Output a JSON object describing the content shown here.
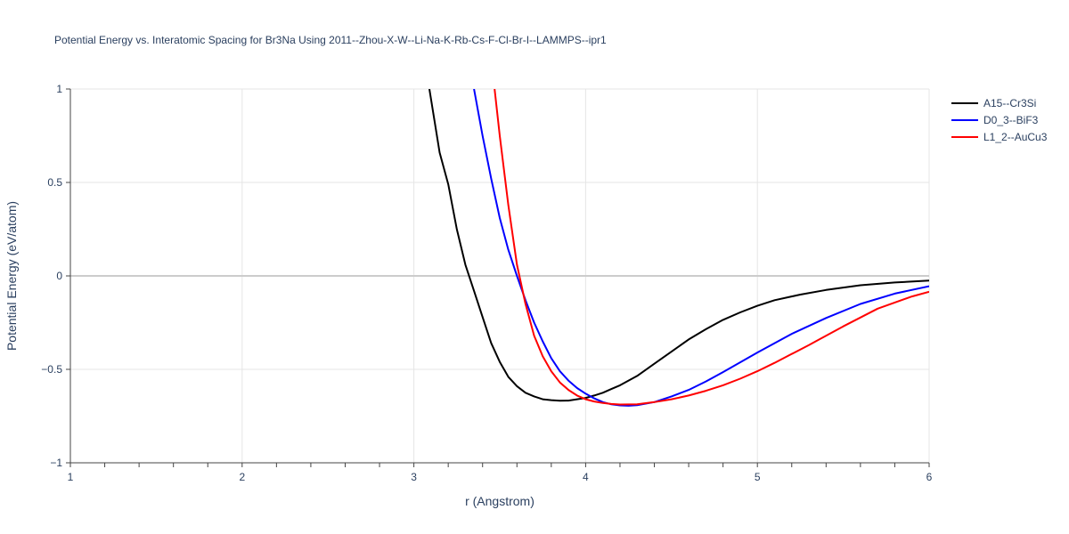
{
  "chart_data": {
    "type": "line",
    "title": "Potential Energy vs. Interatomic Spacing for Br3Na Using 2011--Zhou-X-W--Li-Na-K-Rb-Cs-F-Cl-Br-I--LAMMPS--ipr1",
    "xlabel": "r (Angstrom)",
    "ylabel": "Potential Energy (eV/atom)",
    "xlim": [
      1,
      6
    ],
    "ylim": [
      -1,
      1
    ],
    "x_ticks": [
      1,
      2,
      3,
      4,
      5,
      6
    ],
    "x_tick_labels": [
      "1",
      "2",
      "3",
      "4",
      "5",
      "6"
    ],
    "y_ticks": [
      -1,
      -0.5,
      0,
      0.5,
      1
    ],
    "y_tick_labels": [
      "−1",
      "−0.5",
      "0",
      "0.5",
      "1"
    ],
    "grid": true,
    "legend_position": "top-right",
    "series": [
      {
        "name": "A15--Cr3Si",
        "color": "#000000",
        "x": [
          3.09,
          3.15,
          3.2,
          3.25,
          3.3,
          3.35,
          3.4,
          3.45,
          3.5,
          3.55,
          3.6,
          3.65,
          3.7,
          3.75,
          3.8,
          3.85,
          3.9,
          3.95,
          4.0,
          4.05,
          4.1,
          4.15,
          4.2,
          4.3,
          4.4,
          4.5,
          4.6,
          4.7,
          4.8,
          4.9,
          5.0,
          5.1,
          5.25,
          5.4,
          5.6,
          5.8,
          6.0
        ],
        "y": [
          1.0,
          0.66,
          0.49,
          0.25,
          0.06,
          -0.08,
          -0.22,
          -0.36,
          -0.46,
          -0.54,
          -0.59,
          -0.625,
          -0.645,
          -0.66,
          -0.665,
          -0.668,
          -0.667,
          -0.66,
          -0.653,
          -0.64,
          -0.625,
          -0.605,
          -0.585,
          -0.535,
          -0.47,
          -0.405,
          -0.34,
          -0.285,
          -0.235,
          -0.195,
          -0.16,
          -0.13,
          -0.1,
          -0.075,
          -0.05,
          -0.035,
          -0.025
        ]
      },
      {
        "name": "D0_3--BiF3",
        "color": "#0000ff",
        "x": [
          3.35,
          3.4,
          3.45,
          3.5,
          3.55,
          3.6,
          3.65,
          3.7,
          3.75,
          3.8,
          3.85,
          3.9,
          3.95,
          4.0,
          4.05,
          4.1,
          4.15,
          4.2,
          4.25,
          4.3,
          4.4,
          4.5,
          4.6,
          4.7,
          4.8,
          5.0,
          5.2,
          5.4,
          5.6,
          5.8,
          6.0
        ],
        "y": [
          1.0,
          0.75,
          0.52,
          0.31,
          0.14,
          0.0,
          -0.13,
          -0.25,
          -0.35,
          -0.44,
          -0.51,
          -0.56,
          -0.6,
          -0.63,
          -0.655,
          -0.675,
          -0.687,
          -0.693,
          -0.695,
          -0.692,
          -0.675,
          -0.645,
          -0.61,
          -0.565,
          -0.515,
          -0.41,
          -0.31,
          -0.225,
          -0.15,
          -0.095,
          -0.055
        ]
      },
      {
        "name": "L1_2--AuCu3",
        "color": "#ff0000",
        "x": [
          3.47,
          3.5,
          3.55,
          3.6,
          3.65,
          3.7,
          3.75,
          3.8,
          3.85,
          3.9,
          3.95,
          4.0,
          4.05,
          4.1,
          4.15,
          4.2,
          4.3,
          4.4,
          4.5,
          4.6,
          4.7,
          4.8,
          4.9,
          5.0,
          5.1,
          5.3,
          5.5,
          5.7,
          5.9,
          6.0
        ],
        "y": [
          1.0,
          0.75,
          0.38,
          0.06,
          -0.15,
          -0.32,
          -0.43,
          -0.51,
          -0.57,
          -0.61,
          -0.64,
          -0.66,
          -0.672,
          -0.68,
          -0.685,
          -0.688,
          -0.687,
          -0.675,
          -0.66,
          -0.64,
          -0.615,
          -0.585,
          -0.55,
          -0.51,
          -0.465,
          -0.37,
          -0.27,
          -0.175,
          -0.11,
          -0.085
        ]
      }
    ]
  }
}
